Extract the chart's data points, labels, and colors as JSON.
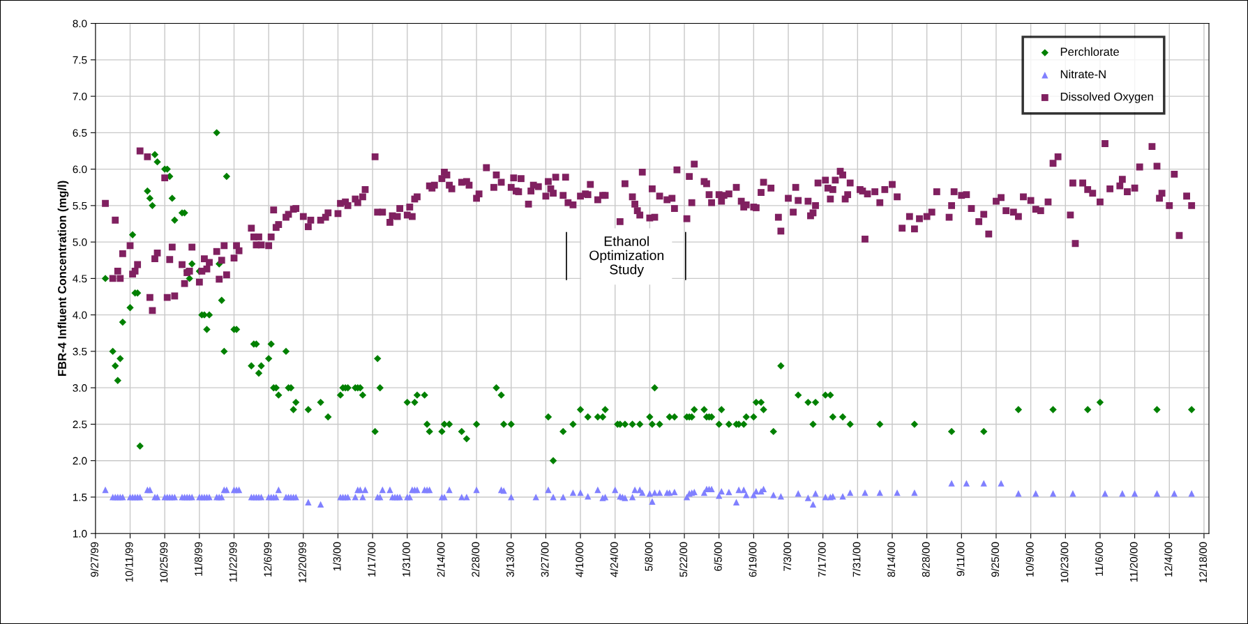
{
  "chart_data": {
    "type": "scatter",
    "ylabel": "FBR-4 Influent Concentration (mg/l)",
    "xlim": [
      "1999-09-27",
      "2000-12-20"
    ],
    "ylim": [
      1.0,
      8.0
    ],
    "yticks": [
      {
        "value": 1,
        "label": "1.0"
      },
      1.5,
      {
        "value": 2,
        "label": "2.0"
      },
      2.5,
      {
        "value": 3,
        "label": "3.0"
      },
      3.5,
      {
        "value": 4,
        "label": "4.0"
      },
      4.5,
      {
        "value": 5,
        "label": "5.0"
      },
      5.5,
      {
        "value": 6,
        "label": "6.0"
      },
      6.5,
      {
        "value": 7,
        "label": "7.0"
      },
      7.5,
      {
        "value": 8,
        "label": "8.0"
      }
    ],
    "xticks": [
      {
        "value": "1999-09-27",
        "label": "9/27/99"
      },
      {
        "value": "1999-10-11",
        "label": "10/11/99"
      },
      {
        "value": "1999-10-25",
        "label": "10/25/99"
      },
      {
        "value": "1999-11-08",
        "label": "11/8/99"
      },
      {
        "value": "1999-11-22",
        "label": "11/22/99"
      },
      {
        "value": "1999-12-06",
        "label": "12/6/99"
      },
      {
        "value": "1999-12-20",
        "label": "12/20/99"
      },
      {
        "value": "2000-01-03",
        "label": "1/3/00"
      },
      {
        "value": "2000-01-17",
        "label": "1/17/00"
      },
      {
        "value": "2000-01-31",
        "label": "1/31/00"
      },
      {
        "value": "2000-02-14",
        "label": "2/14/00"
      },
      {
        "value": "2000-02-28",
        "label": "2/28/00"
      },
      {
        "value": "2000-03-13",
        "label": "3/13/00"
      },
      {
        "value": "2000-03-27",
        "label": "3/27/00"
      },
      {
        "value": "2000-04-10",
        "label": "4/10/00"
      },
      {
        "value": "2000-04-24",
        "label": "4/24/00"
      },
      {
        "value": "2000-05-08",
        "label": "5/8/00"
      },
      {
        "value": "2000-05-22",
        "label": "5/22/00"
      },
      {
        "value": "2000-06-05",
        "label": "6/5/00"
      },
      {
        "value": "2000-06-19",
        "label": "6/19/00"
      },
      {
        "value": "2000-07-03",
        "label": "7/3/00"
      },
      {
        "value": "2000-07-17",
        "label": "7/17/00"
      },
      {
        "value": "2000-07-31",
        "label": "7/31/00"
      },
      {
        "value": "2000-08-14",
        "label": "8/14/00"
      },
      {
        "value": "2000-08-28",
        "label": "8/28/00"
      },
      {
        "value": "2000-09-11",
        "label": "9/11/00"
      },
      {
        "value": "2000-09-25",
        "label": "9/25/00"
      },
      {
        "value": "2000-10-09",
        "label": "10/9/00"
      },
      {
        "value": "2000-10-23",
        "label": "10/23/00"
      },
      {
        "value": "2000-11-06",
        "label": "11/6/00"
      },
      {
        "value": "2000-11-20",
        "label": "11/20/00"
      },
      {
        "value": "2000-12-04",
        "label": "12/4/00"
      },
      {
        "value": "2000-12-18",
        "label": "12/18/00"
      }
    ],
    "grid": true,
    "legend": "top right",
    "annotations": [
      "Ethanol\nOptimization\nStudy"
    ],
    "series": [
      {
        "name": "Perchlorate",
        "color": "#008000",
        "marker": "diamond",
        "x": [
          "1999-10-01",
          "1999-10-04",
          "1999-10-05",
          "1999-10-06",
          "1999-10-07",
          "1999-10-08",
          "1999-10-11",
          "1999-10-12",
          "1999-10-13",
          "1999-10-14",
          "1999-10-15",
          "1999-10-18",
          "1999-10-19",
          "1999-10-20",
          "1999-10-21",
          "1999-10-22",
          "1999-10-25",
          "1999-10-26",
          "1999-10-27",
          "1999-10-28",
          "1999-10-29",
          "1999-11-01",
          "1999-11-02",
          "1999-11-03",
          "1999-11-04",
          "1999-11-05",
          "1999-11-08",
          "1999-11-09",
          "1999-11-10",
          "1999-11-11",
          "1999-11-12",
          "1999-11-15",
          "1999-11-16",
          "1999-11-17",
          "1999-11-18",
          "1999-11-19",
          "1999-11-22",
          "1999-11-23",
          "1999-11-29",
          "1999-11-30",
          "1999-12-01",
          "1999-12-02",
          "1999-12-03",
          "1999-12-06",
          "1999-12-07",
          "1999-12-08",
          "1999-12-09",
          "1999-12-10",
          "1999-12-13",
          "1999-12-14",
          "1999-12-15",
          "1999-12-16",
          "1999-12-17",
          "1999-12-22",
          "1999-12-27",
          "1999-12-30",
          "2000-01-04",
          "2000-01-05",
          "2000-01-06",
          "2000-01-07",
          "2000-01-10",
          "2000-01-11",
          "2000-01-12",
          "2000-01-13",
          "2000-01-18",
          "2000-01-19",
          "2000-01-20",
          "2000-01-31",
          "2000-02-03",
          "2000-02-04",
          "2000-02-07",
          "2000-02-08",
          "2000-02-09",
          "2000-02-14",
          "2000-02-15",
          "2000-02-17",
          "2000-02-22",
          "2000-02-24",
          "2000-02-28",
          "2000-03-07",
          "2000-03-09",
          "2000-03-10",
          "2000-03-13",
          "2000-03-28",
          "2000-03-30",
          "2000-04-03",
          "2000-04-07",
          "2000-04-10",
          "2000-04-13",
          "2000-04-17",
          "2000-04-19",
          "2000-04-20",
          "2000-04-25",
          "2000-04-26",
          "2000-04-28",
          "2000-05-01",
          "2000-05-04",
          "2000-05-08",
          "2000-05-09",
          "2000-05-10",
          "2000-05-12",
          "2000-05-16",
          "2000-05-18",
          "2000-05-23",
          "2000-05-24",
          "2000-05-25",
          "2000-05-26",
          "2000-05-30",
          "2000-05-31",
          "2000-06-01",
          "2000-06-02",
          "2000-06-05",
          "2000-06-06",
          "2000-06-09",
          "2000-06-12",
          "2000-06-13",
          "2000-06-15",
          "2000-06-16",
          "2000-06-19",
          "2000-06-20",
          "2000-06-22",
          "2000-06-23",
          "2000-06-27",
          "2000-06-30",
          "2000-07-07",
          "2000-07-11",
          "2000-07-13",
          "2000-07-14",
          "2000-07-18",
          "2000-07-20",
          "2000-07-21",
          "2000-07-25",
          "2000-07-28",
          "2000-08-09",
          "2000-08-23",
          "2000-09-07",
          "2000-09-20",
          "2000-10-04",
          "2000-10-18",
          "2000-11-01",
          "2000-11-06",
          "2000-11-29",
          "2000-12-13"
        ],
        "values": [
          4.5,
          3.5,
          3.3,
          3.1,
          3.4,
          3.9,
          4.1,
          5.1,
          4.3,
          4.3,
          2.2,
          5.7,
          5.6,
          5.5,
          6.2,
          6.1,
          6.0,
          6.0,
          5.9,
          5.6,
          5.3,
          5.4,
          5.4,
          4.6,
          4.5,
          4.7,
          4.6,
          4.0,
          4.0,
          3.8,
          4.0,
          6.5,
          4.7,
          4.2,
          3.5,
          5.9,
          3.8,
          3.8,
          3.3,
          3.6,
          3.6,
          3.2,
          3.3,
          3.4,
          3.6,
          3.0,
          3.0,
          2.9,
          3.5,
          3.0,
          3.0,
          2.7,
          2.8,
          2.7,
          2.8,
          2.6,
          2.9,
          3.0,
          3.0,
          3.0,
          3.0,
          3.0,
          3.0,
          2.9,
          2.4,
          3.4,
          3.0,
          2.8,
          2.8,
          2.9,
          2.9,
          2.5,
          2.4,
          2.4,
          2.5,
          2.5,
          2.4,
          2.3,
          2.5,
          3.0,
          2.9,
          2.5,
          2.5,
          2.6,
          2.0,
          2.4,
          2.5,
          2.7,
          2.6,
          2.6,
          2.6,
          2.7,
          2.5,
          2.5,
          2.5,
          2.5,
          2.5,
          2.6,
          2.5,
          3.0,
          2.5,
          2.6,
          2.6,
          2.6,
          2.6,
          2.6,
          2.7,
          2.7,
          2.6,
          2.6,
          2.6,
          2.5,
          2.7,
          2.5,
          2.5,
          2.5,
          2.5,
          2.6,
          2.6,
          2.8,
          2.8,
          2.7,
          2.4,
          3.3,
          2.9,
          2.8,
          2.5,
          2.8,
          2.9,
          2.9,
          2.6,
          2.6,
          2.5,
          2.5,
          2.5,
          2.4,
          2.4,
          2.7,
          2.7,
          2.7,
          2.8,
          2.7,
          2.7
        ]
      },
      {
        "name": "Nitrate-N",
        "color": "#8080ff",
        "marker": "triangle",
        "x": [
          "1999-10-01",
          "1999-10-04",
          "1999-10-05",
          "1999-10-06",
          "1999-10-07",
          "1999-10-08",
          "1999-10-11",
          "1999-10-12",
          "1999-10-13",
          "1999-10-14",
          "1999-10-15",
          "1999-10-18",
          "1999-10-19",
          "1999-10-21",
          "1999-10-22",
          "1999-10-25",
          "1999-10-26",
          "1999-10-27",
          "1999-10-28",
          "1999-10-29",
          "1999-11-01",
          "1999-11-02",
          "1999-11-03",
          "1999-11-04",
          "1999-11-05",
          "1999-11-08",
          "1999-11-09",
          "1999-11-10",
          "1999-11-11",
          "1999-11-12",
          "1999-11-15",
          "1999-11-16",
          "1999-11-17",
          "1999-11-18",
          "1999-11-19",
          "1999-11-22",
          "1999-11-23",
          "1999-11-24",
          "1999-11-29",
          "1999-11-30",
          "1999-12-01",
          "1999-12-02",
          "1999-12-03",
          "1999-12-06",
          "1999-12-07",
          "1999-12-08",
          "1999-12-09",
          "1999-12-10",
          "1999-12-13",
          "1999-12-14",
          "1999-12-15",
          "1999-12-16",
          "1999-12-17",
          "1999-12-22",
          "1999-12-27",
          "2000-01-04",
          "2000-01-05",
          "2000-01-06",
          "2000-01-07",
          "2000-01-10",
          "2000-01-11",
          "2000-01-12",
          "2000-01-13",
          "2000-01-14",
          "2000-01-19",
          "2000-01-20",
          "2000-01-21",
          "2000-01-24",
          "2000-01-25",
          "2000-01-26",
          "2000-01-27",
          "2000-01-28",
          "2000-01-31",
          "2000-02-01",
          "2000-02-02",
          "2000-02-03",
          "2000-02-04",
          "2000-02-07",
          "2000-02-08",
          "2000-02-09",
          "2000-02-14",
          "2000-02-15",
          "2000-02-17",
          "2000-02-22",
          "2000-02-24",
          "2000-02-28",
          "2000-03-09",
          "2000-03-10",
          "2000-03-13",
          "2000-03-23",
          "2000-03-28",
          "2000-03-30",
          "2000-04-03",
          "2000-04-07",
          "2000-04-10",
          "2000-04-13",
          "2000-04-17",
          "2000-04-19",
          "2000-04-20",
          "2000-04-24",
          "2000-04-26",
          "2000-04-27",
          "2000-04-28",
          "2000-05-01",
          "2000-05-02",
          "2000-05-04",
          "2000-05-05",
          "2000-05-08",
          "2000-05-09",
          "2000-05-10",
          "2000-05-12",
          "2000-05-15",
          "2000-05-16",
          "2000-05-18",
          "2000-05-23",
          "2000-05-24",
          "2000-05-25",
          "2000-05-26",
          "2000-05-30",
          "2000-05-31",
          "2000-06-01",
          "2000-06-02",
          "2000-06-05",
          "2000-06-06",
          "2000-06-09",
          "2000-06-12",
          "2000-06-13",
          "2000-06-15",
          "2000-06-16",
          "2000-06-19",
          "2000-06-20",
          "2000-06-22",
          "2000-06-23",
          "2000-06-27",
          "2000-06-30",
          "2000-07-07",
          "2000-07-11",
          "2000-07-13",
          "2000-07-14",
          "2000-07-18",
          "2000-07-20",
          "2000-07-21",
          "2000-07-25",
          "2000-07-28",
          "2000-08-03",
          "2000-08-09",
          "2000-08-16",
          "2000-08-23",
          "2000-09-07",
          "2000-09-13",
          "2000-09-20",
          "2000-09-27",
          "2000-10-04",
          "2000-10-11",
          "2000-10-18",
          "2000-10-26",
          "2000-11-08",
          "2000-11-15",
          "2000-11-20",
          "2000-11-29",
          "2000-12-06",
          "2000-12-13"
        ],
        "values": [
          1.6,
          1.5,
          1.5,
          1.5,
          1.5,
          1.5,
          1.5,
          1.5,
          1.5,
          1.5,
          1.5,
          1.6,
          1.6,
          1.5,
          1.5,
          1.5,
          1.5,
          1.5,
          1.5,
          1.5,
          1.5,
          1.5,
          1.5,
          1.5,
          1.5,
          1.5,
          1.5,
          1.5,
          1.5,
          1.5,
          1.5,
          1.5,
          1.5,
          1.6,
          1.6,
          1.6,
          1.6,
          1.6,
          1.5,
          1.5,
          1.5,
          1.5,
          1.5,
          1.5,
          1.5,
          1.5,
          1.5,
          1.6,
          1.5,
          1.5,
          1.5,
          1.5,
          1.5,
          1.43,
          1.4,
          1.5,
          1.5,
          1.5,
          1.5,
          1.5,
          1.6,
          1.6,
          1.5,
          1.6,
          1.5,
          1.5,
          1.6,
          1.6,
          1.5,
          1.5,
          1.5,
          1.5,
          1.5,
          1.5,
          1.6,
          1.6,
          1.6,
          1.6,
          1.6,
          1.6,
          1.5,
          1.5,
          1.6,
          1.5,
          1.5,
          1.6,
          1.6,
          1.59,
          1.5,
          1.5,
          1.6,
          1.5,
          1.5,
          1.56,
          1.56,
          1.51,
          1.6,
          1.49,
          1.5,
          1.6,
          1.51,
          1.5,
          1.49,
          1.5,
          1.6,
          1.6,
          1.56,
          1.55,
          1.44,
          1.56,
          1.56,
          1.56,
          1.56,
          1.57,
          1.5,
          1.55,
          1.56,
          1.57,
          1.56,
          1.61,
          1.61,
          1.61,
          1.52,
          1.58,
          1.57,
          1.43,
          1.6,
          1.6,
          1.53,
          1.53,
          1.58,
          1.58,
          1.61,
          1.53,
          1.51,
          1.55,
          1.49,
          1.4,
          1.55,
          1.5,
          1.5,
          1.51,
          1.51,
          1.56,
          1.56,
          1.56,
          1.56,
          1.56,
          1.69,
          1.69,
          1.69,
          1.69,
          1.55,
          1.55,
          1.55,
          1.55,
          1.55,
          1.55,
          1.55,
          1.55,
          1.55,
          1.55
        ]
      },
      {
        "name": "Dissolved Oxygen",
        "color": "#802060",
        "marker": "square",
        "x": [
          "1999-10-01",
          "1999-10-04",
          "1999-10-05",
          "1999-10-06",
          "1999-10-07",
          "1999-10-08",
          "1999-10-11",
          "1999-10-12",
          "1999-10-13",
          "1999-10-14",
          "1999-10-15",
          "1999-10-18",
          "1999-10-19",
          "1999-10-20",
          "1999-10-21",
          "1999-10-22",
          "1999-10-25",
          "1999-10-26",
          "1999-10-27",
          "1999-10-28",
          "1999-10-29",
          "1999-11-01",
          "1999-11-02",
          "1999-11-03",
          "1999-11-04",
          "1999-11-05",
          "1999-11-08",
          "1999-11-09",
          "1999-11-10",
          "1999-11-11",
          "1999-11-12",
          "1999-11-15",
          "1999-11-16",
          "1999-11-17",
          "1999-11-18",
          "1999-11-19",
          "1999-11-22",
          "1999-11-23",
          "1999-11-24",
          "1999-11-29",
          "1999-11-30",
          "1999-12-01",
          "1999-12-02",
          "1999-12-03",
          "1999-12-06",
          "1999-12-07",
          "1999-12-08",
          "1999-12-09",
          "1999-12-10",
          "1999-12-13",
          "1999-12-14",
          "1999-12-16",
          "1999-12-17",
          "1999-12-20",
          "1999-12-22",
          "1999-12-23",
          "1999-12-27",
          "1999-12-29",
          "1999-12-30",
          "2000-01-03",
          "2000-01-04",
          "2000-01-06",
          "2000-01-07",
          "2000-01-10",
          "2000-01-11",
          "2000-01-13",
          "2000-01-14",
          "2000-01-18",
          "2000-01-19",
          "2000-01-21",
          "2000-01-24",
          "2000-01-25",
          "2000-01-27",
          "2000-01-28",
          "2000-01-31",
          "2000-02-01",
          "2000-02-02",
          "2000-02-03",
          "2000-02-04",
          "2000-02-09",
          "2000-02-10",
          "2000-02-11",
          "2000-02-14",
          "2000-02-15",
          "2000-02-16",
          "2000-02-17",
          "2000-02-18",
          "2000-02-22",
          "2000-02-24",
          "2000-02-25",
          "2000-02-28",
          "2000-02-29",
          "2000-03-03",
          "2000-03-06",
          "2000-03-07",
          "2000-03-09",
          "2000-03-13",
          "2000-03-14",
          "2000-03-15",
          "2000-03-16",
          "2000-03-17",
          "2000-03-20",
          "2000-03-21",
          "2000-03-22",
          "2000-03-24",
          "2000-03-27",
          "2000-03-28",
          "2000-03-29",
          "2000-03-30",
          "2000-03-31",
          "2000-04-03",
          "2000-04-04",
          "2000-04-05",
          "2000-04-07",
          "2000-04-10",
          "2000-04-12",
          "2000-04-13",
          "2000-04-14",
          "2000-04-17",
          "2000-04-19",
          "2000-04-20",
          "2000-04-26",
          "2000-04-28",
          "2000-05-01",
          "2000-05-02",
          "2000-05-03",
          "2000-05-04",
          "2000-05-05",
          "2000-05-08",
          "2000-05-09",
          "2000-05-10",
          "2000-05-12",
          "2000-05-15",
          "2000-05-17",
          "2000-05-18",
          "2000-05-19",
          "2000-05-23",
          "2000-05-24",
          "2000-05-25",
          "2000-05-26",
          "2000-05-30",
          "2000-05-31",
          "2000-06-01",
          "2000-06-02",
          "2000-06-05",
          "2000-06-06",
          "2000-06-07",
          "2000-06-09",
          "2000-06-12",
          "2000-06-14",
          "2000-06-15",
          "2000-06-16",
          "2000-06-19",
          "2000-06-20",
          "2000-06-22",
          "2000-06-23",
          "2000-06-26",
          "2000-06-29",
          "2000-06-30",
          "2000-07-03",
          "2000-07-05",
          "2000-07-06",
          "2000-07-07",
          "2000-07-11",
          "2000-07-12",
          "2000-07-13",
          "2000-07-14",
          "2000-07-15",
          "2000-07-18",
          "2000-07-19",
          "2000-07-20",
          "2000-07-21",
          "2000-07-22",
          "2000-07-24",
          "2000-07-25",
          "2000-07-26",
          "2000-07-27",
          "2000-07-28",
          "2000-08-01",
          "2000-08-02",
          "2000-08-03",
          "2000-08-04",
          "2000-08-07",
          "2000-08-09",
          "2000-08-11",
          "2000-08-14",
          "2000-08-16",
          "2000-08-18",
          "2000-08-21",
          "2000-08-23",
          "2000-08-25",
          "2000-08-28",
          "2000-08-30",
          "2000-09-01",
          "2000-09-06",
          "2000-09-07",
          "2000-09-08",
          "2000-09-11",
          "2000-09-13",
          "2000-09-15",
          "2000-09-18",
          "2000-09-20",
          "2000-09-22",
          "2000-09-25",
          "2000-09-27",
          "2000-09-29",
          "2000-10-02",
          "2000-10-04",
          "2000-10-06",
          "2000-10-09",
          "2000-10-11",
          "2000-10-13",
          "2000-10-16",
          "2000-10-18",
          "2000-10-20",
          "2000-10-25",
          "2000-10-26",
          "2000-10-27",
          "2000-10-30",
          "2000-11-01",
          "2000-11-03",
          "2000-11-06",
          "2000-11-08",
          "2000-11-10",
          "2000-11-14",
          "2000-11-15",
          "2000-11-17",
          "2000-11-20",
          "2000-11-22",
          "2000-11-27",
          "2000-11-29",
          "2000-11-30",
          "2000-12-01",
          "2000-12-04",
          "2000-12-06",
          "2000-12-08",
          "2000-12-11",
          "2000-12-13"
        ],
        "values": [
          5.53,
          4.5,
          5.3,
          4.6,
          4.5,
          4.84,
          4.95,
          4.56,
          4.6,
          4.69,
          6.25,
          6.17,
          4.24,
          4.06,
          4.77,
          4.85,
          5.88,
          4.24,
          4.76,
          4.93,
          4.26,
          4.69,
          4.43,
          4.58,
          4.6,
          4.93,
          4.45,
          4.6,
          4.77,
          4.63,
          4.72,
          4.87,
          4.49,
          4.75,
          4.95,
          4.55,
          4.78,
          4.95,
          4.88,
          5.19,
          5.07,
          4.96,
          5.07,
          4.96,
          4.95,
          5.07,
          5.44,
          5.2,
          5.24,
          5.34,
          5.38,
          5.45,
          5.46,
          5.35,
          5.21,
          5.3,
          5.3,
          5.34,
          5.4,
          5.39,
          5.53,
          5.55,
          5.5,
          5.59,
          5.54,
          5.62,
          5.72,
          6.17,
          5.41,
          5.41,
          5.27,
          5.36,
          5.35,
          5.46,
          5.37,
          5.48,
          5.35,
          5.59,
          5.62,
          5.77,
          5.74,
          5.78,
          5.87,
          5.96,
          5.92,
          5.78,
          5.73,
          5.82,
          5.83,
          5.78,
          5.6,
          5.66,
          6.02,
          5.75,
          5.92,
          5.82,
          5.75,
          5.88,
          5.7,
          5.69,
          5.87,
          5.52,
          5.7,
          5.78,
          5.76,
          5.63,
          5.83,
          5.73,
          5.67,
          5.89,
          5.64,
          5.89,
          5.54,
          5.51,
          5.63,
          5.66,
          5.65,
          5.79,
          5.58,
          5.64,
          5.64,
          5.28,
          5.8,
          5.62,
          5.52,
          5.43,
          5.37,
          5.96,
          5.33,
          5.73,
          5.34,
          5.63,
          5.58,
          5.6,
          5.46,
          5.99,
          5.32,
          5.9,
          5.54,
          6.07,
          5.83,
          5.8,
          5.65,
          5.54,
          5.65,
          5.56,
          5.64,
          5.66,
          5.75,
          5.56,
          5.48,
          5.51,
          5.48,
          5.47,
          5.68,
          5.82,
          5.74,
          5.34,
          5.15,
          5.6,
          5.41,
          5.75,
          5.57,
          5.56,
          5.36,
          5.4,
          5.5,
          5.81,
          5.85,
          5.74,
          5.59,
          5.72,
          5.85,
          5.97,
          5.92,
          5.59,
          5.65,
          5.81,
          5.72,
          5.7,
          5.04,
          5.66,
          5.69,
          5.54,
          5.72,
          5.79,
          5.62,
          5.19,
          5.35,
          5.18,
          5.32,
          5.35,
          5.41,
          5.69,
          5.34,
          5.5,
          5.69,
          5.64,
          5.65,
          5.46,
          5.28,
          5.38,
          5.11,
          5.56,
          5.61,
          5.43,
          5.41,
          5.35,
          5.62,
          5.57,
          5.45,
          5.43,
          5.55,
          6.08,
          6.17,
          5.37,
          5.81,
          4.98,
          5.81,
          5.72,
          5.67,
          5.55,
          6.35,
          5.73,
          5.77,
          5.86,
          5.69,
          5.74,
          6.03,
          6.31,
          6.04,
          5.6,
          5.67,
          5.5,
          5.93,
          5.09,
          5.63,
          5.5
        ]
      }
    ]
  }
}
